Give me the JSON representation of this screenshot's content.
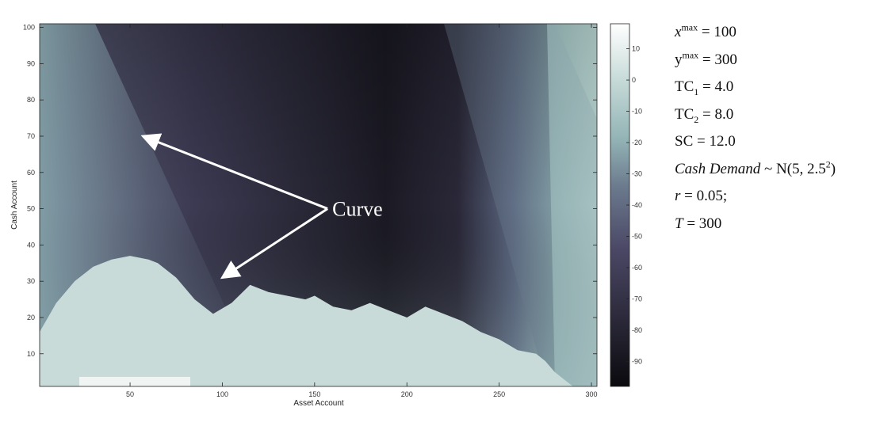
{
  "chart_data": {
    "type": "heatmap",
    "xlabel": "Asset Account",
    "ylabel": "Cash Account",
    "xlim": [
      1,
      303
    ],
    "ylim": [
      1,
      101
    ],
    "x_ticks": [
      "50",
      "100",
      "150",
      "200",
      "250",
      "300"
    ],
    "y_ticks": [
      "10",
      "20",
      "30",
      "40",
      "50",
      "60",
      "70",
      "80",
      "90",
      "100"
    ],
    "colorbar": {
      "range": [
        -98,
        18
      ],
      "ticks": [
        "10",
        "0",
        "-10",
        "-20",
        "-30",
        "-40",
        "-50",
        "-60",
        "-70",
        "-80",
        "-90"
      ],
      "colormap": [
        "#0a0a0e",
        "#2a2838",
        "#4b4866",
        "#6b7a8d",
        "#92b3b5",
        "#c8dcd9",
        "#ffffff"
      ]
    },
    "boundary_curve": {
      "x": [
        1,
        10,
        20,
        30,
        40,
        50,
        60,
        65,
        75,
        85,
        95,
        105,
        115,
        125,
        135,
        145,
        150,
        160,
        170,
        180,
        190,
        200,
        210,
        220,
        230,
        240,
        250,
        260,
        270,
        275,
        280,
        285,
        290
      ],
      "y": [
        16,
        24,
        30,
        34,
        36,
        37,
        36,
        35,
        31,
        25,
        21,
        24,
        29,
        27,
        26,
        25,
        26,
        23,
        22,
        24,
        22,
        20,
        23,
        21,
        19,
        16,
        14,
        11,
        10,
        8,
        5,
        3,
        1
      ]
    },
    "annotation": {
      "text": "Curve",
      "anchor": [
        157,
        50
      ],
      "arrow_targets": [
        [
          57,
          70
        ],
        [
          100,
          31
        ]
      ]
    }
  },
  "parameters": {
    "xmax_var": "x",
    "xmax_sup": "max",
    "xmax_val": "= 100",
    "ymax_var": "y",
    "ymax_sup": "max",
    "ymax_val": "= 300",
    "tc1_var": "TC",
    "tc1_sub": "1",
    "tc1_val": "= 4.0",
    "tc2_var": "TC",
    "tc2_sub": "2",
    "tc2_val": "= 8.0",
    "sc": "SC = 12.0",
    "demand_label": "Cash Demand",
    "demand_dist": "~ N(5, 2.5",
    "demand_sup": "2",
    "demand_close": ")",
    "r_var": "r",
    "r_val": "= 0.05;",
    "t_var": "T",
    "t_val": "= 300"
  }
}
